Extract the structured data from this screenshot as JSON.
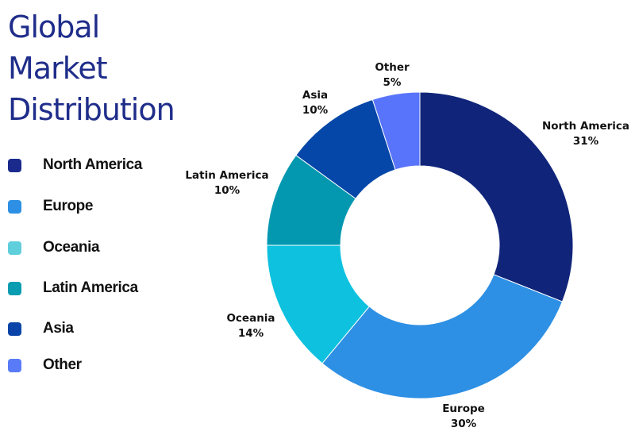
{
  "title_lines": [
    "Global",
    "Market",
    "Distribution"
  ],
  "legend": [
    {
      "label": "North America",
      "color": "#1a2a8c"
    },
    {
      "label": "Europe",
      "color": "#2e90e4"
    },
    {
      "label": "Oceania",
      "color": "#5fcfdb"
    },
    {
      "label": "Latin America",
      "color": "#0a9cb0"
    },
    {
      "label": "Asia",
      "color": "#0a44a8"
    },
    {
      "label": "Other",
      "color": "#5a7bf8"
    }
  ],
  "chart_data": {
    "type": "pie",
    "donut": true,
    "title": "Global Market Distribution",
    "categories": [
      "North America",
      "Europe",
      "Oceania",
      "Latin America",
      "Asia",
      "Other"
    ],
    "values": [
      31,
      30,
      14,
      10,
      10,
      5
    ],
    "value_labels": [
      "31%",
      "30%",
      "14%",
      "10%",
      "10%",
      "5%"
    ],
    "colors": [
      "#10257a",
      "#2e90e4",
      "#0ec2df",
      "#0398b0",
      "#0447a8",
      "#5874fa"
    ],
    "legend_position": "left"
  }
}
